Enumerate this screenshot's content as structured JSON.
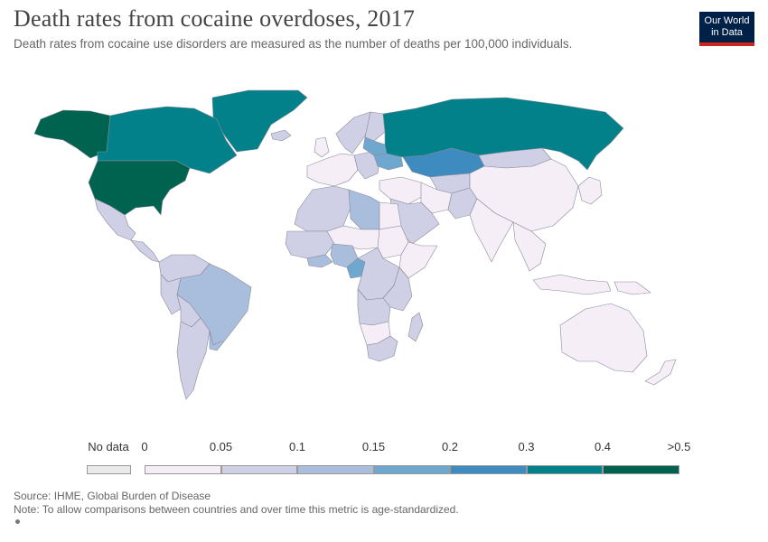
{
  "header": {
    "title": "Death rates from cocaine overdoses, 2017",
    "subtitle": "Death rates from cocaine use disorders are measured as the number of deaths per 100,000 individuals.",
    "logo_line1": "Our World",
    "logo_line2": "in Data"
  },
  "legend": {
    "no_data_label": "No data",
    "no_data_color": "#eaeaea",
    "bins": [
      {
        "from": "0",
        "to": "0.05",
        "color": "#f5eef7"
      },
      {
        "from": "0.05",
        "to": "0.1",
        "color": "#cfcfe5"
      },
      {
        "from": "0.1",
        "to": "0.15",
        "color": "#a8bedc"
      },
      {
        "from": "0.15",
        "to": "0.2",
        "color": "#6fa8cf"
      },
      {
        "from": "0.2",
        "to": "0.3",
        "color": "#3e8cbf"
      },
      {
        "from": "0.3",
        "to": "0.4",
        "color": "#03818a"
      },
      {
        "from": "0.4",
        "to": ">0.5",
        "color": "#006350"
      }
    ],
    "tick_labels": [
      "0",
      "0.05",
      "0.1",
      "0.15",
      "0.2",
      "0.3",
      "0.4",
      ">0.5"
    ]
  },
  "map_data": {
    "year": "2017",
    "regions": [
      {
        "name": "Alaska",
        "bin": 6
      },
      {
        "name": "Canada",
        "bin": 5
      },
      {
        "name": "Greenland",
        "bin": 5
      },
      {
        "name": "United States",
        "bin": 6
      },
      {
        "name": "Mexico",
        "bin": 1
      },
      {
        "name": "Central America",
        "bin": 1
      },
      {
        "name": "Colombia/Venezuela",
        "bin": 1
      },
      {
        "name": "Peru",
        "bin": 1
      },
      {
        "name": "Brazil",
        "bin": 2
      },
      {
        "name": "Bolivia",
        "bin": 1
      },
      {
        "name": "Argentina/Chile",
        "bin": 1
      },
      {
        "name": "Uruguay",
        "bin": 2
      },
      {
        "name": "Iceland",
        "bin": 1
      },
      {
        "name": "Scandinavia",
        "bin": 1
      },
      {
        "name": "Finland",
        "bin": 1
      },
      {
        "name": "United Kingdom",
        "bin": 0
      },
      {
        "name": "Western Europe",
        "bin": 0
      },
      {
        "name": "Eastern Europe",
        "bin": 1
      },
      {
        "name": "Belarus/Baltics",
        "bin": 3
      },
      {
        "name": "Ukraine",
        "bin": 3
      },
      {
        "name": "Russia",
        "bin": 5
      },
      {
        "name": "Kazakhstan",
        "bin": 4
      },
      {
        "name": "Mongolia",
        "bin": 1
      },
      {
        "name": "Central Asia",
        "bin": 1
      },
      {
        "name": "Middle East",
        "bin": 0
      },
      {
        "name": "Saudi Arabia",
        "bin": 1
      },
      {
        "name": "Iran",
        "bin": 0
      },
      {
        "name": "Afghanistan/Pakistan",
        "bin": 1
      },
      {
        "name": "China",
        "bin": 0
      },
      {
        "name": "India",
        "bin": 0
      },
      {
        "name": "Southeast Asia",
        "bin": 0
      },
      {
        "name": "Japan/Korea",
        "bin": 0
      },
      {
        "name": "Indonesia/Philippines",
        "bin": 0
      },
      {
        "name": "Papua New Guinea",
        "bin": 0
      },
      {
        "name": "Australia",
        "bin": 0
      },
      {
        "name": "New Zealand",
        "bin": 0
      },
      {
        "name": "Morocco/Algeria",
        "bin": 1
      },
      {
        "name": "Libya",
        "bin": 2
      },
      {
        "name": "Egypt",
        "bin": 0
      },
      {
        "name": "West Africa",
        "bin": 1
      },
      {
        "name": "Ghana/Ivory Coast",
        "bin": 2
      },
      {
        "name": "Nigeria",
        "bin": 2
      },
      {
        "name": "Cameroon",
        "bin": 3
      },
      {
        "name": "Chad/Niger",
        "bin": 0
      },
      {
        "name": "Sudan",
        "bin": 0
      },
      {
        "name": "Ethiopia/Somalia",
        "bin": 0
      },
      {
        "name": "Central Africa",
        "bin": 1
      },
      {
        "name": "East Africa",
        "bin": 1
      },
      {
        "name": "Angola/Zambia",
        "bin": 1
      },
      {
        "name": "Namibia/Botswana",
        "bin": 0
      },
      {
        "name": "South Africa",
        "bin": 1
      },
      {
        "name": "Madagascar",
        "bin": 1
      }
    ]
  },
  "footer": {
    "source": "Source: IHME, Global Burden of Disease",
    "note": "Note: To allow comparisons between countries and over time this metric is age-standardized."
  }
}
